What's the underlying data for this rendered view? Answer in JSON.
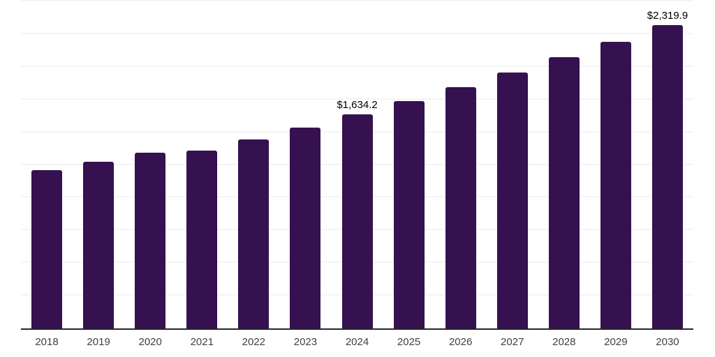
{
  "chart_data": {
    "type": "bar",
    "title": "",
    "xlabel": "",
    "ylabel": "",
    "categories": [
      "2018",
      "2019",
      "2020",
      "2021",
      "2022",
      "2023",
      "2024",
      "2025",
      "2026",
      "2027",
      "2028",
      "2029",
      "2030"
    ],
    "values": [
      1210,
      1275,
      1345,
      1360,
      1445,
      1535,
      1634.2,
      1738,
      1846,
      1958,
      2075,
      2192,
      2319.9
    ],
    "labeled_points": [
      {
        "category": "2024",
        "label": "$1,634.2"
      },
      {
        "category": "2030",
        "label": "$2,319.9"
      }
    ],
    "ylim": [
      0,
      2500
    ],
    "gridline_interval": 250,
    "grid": "horizontal only, no y-axis tick labels, no legend, no title",
    "legend_position": "none",
    "bar_color": "#351150",
    "axis_line_color": "#262626",
    "gridline_color": "#f4f4f4",
    "tick_label_color": "#404040",
    "data_label_color": "#000000",
    "background_color": "#ffffff"
  }
}
